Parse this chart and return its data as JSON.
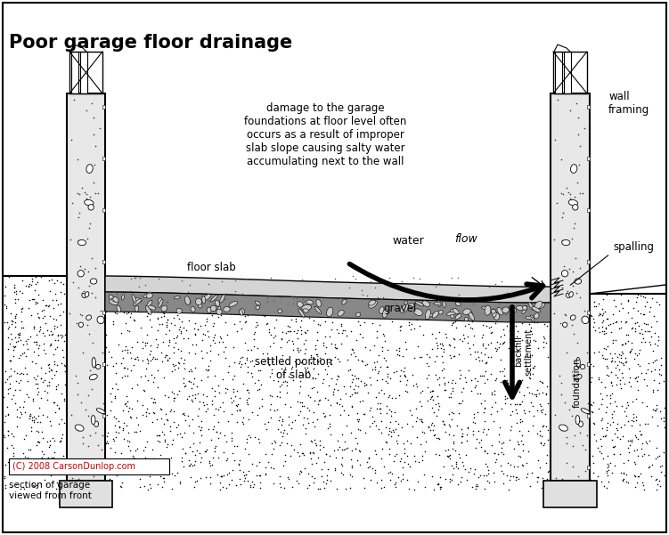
{
  "title": "Poor garage floor drainage",
  "bg_color": "#ffffff",
  "red_text": "#cc0000",
  "copyright_text": "(C) 2008 CarsonDunlop.com",
  "bottom_left_text": "section of garage\nviewed from front",
  "annotations": {
    "damage_text": "damage to the garage\nfoundations at floor level often\noccurs as a result of improper\nslab slope causing salty water\naccumulating next to the wall",
    "water": "water",
    "flow": "flow",
    "floor_slab": "floor slab",
    "gravel": "gravel",
    "settled_portion": "settled portion\nof slab",
    "backfill_settlement": "backfill\nsettlement",
    "foundation": "foundation",
    "spalling": "spalling",
    "wall_framing": "wall\nframing"
  }
}
